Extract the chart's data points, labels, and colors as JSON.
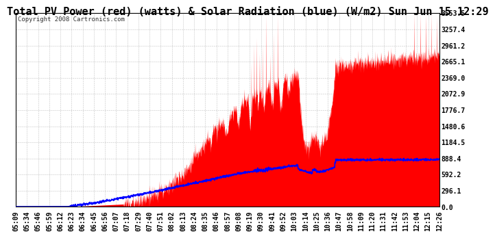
{
  "title": "Total PV Power (red) (watts) & Solar Radiation (blue) (W/m2) Sun Jun 15 12:29",
  "copyright": "Copyright 2008 Cartronics.com",
  "background_color": "#ffffff",
  "plot_bg_color": "#ffffff",
  "grid_color": "#aaaaaa",
  "y_ticks": [
    0.0,
    296.1,
    592.2,
    888.4,
    1184.5,
    1480.6,
    1776.7,
    2072.9,
    2369.0,
    2665.1,
    2961.2,
    3257.4,
    3553.5
  ],
  "y_max": 3553.5,
  "x_labels": [
    "05:09",
    "05:34",
    "05:46",
    "05:59",
    "06:12",
    "06:23",
    "06:34",
    "06:45",
    "06:56",
    "07:07",
    "07:18",
    "07:29",
    "07:40",
    "07:51",
    "08:02",
    "08:13",
    "08:24",
    "08:35",
    "08:46",
    "08:57",
    "09:08",
    "09:19",
    "09:30",
    "09:41",
    "09:52",
    "10:03",
    "10:14",
    "10:25",
    "10:36",
    "10:47",
    "10:58",
    "11:09",
    "11:20",
    "11:31",
    "11:42",
    "11:53",
    "12:04",
    "12:15",
    "12:26"
  ],
  "pv_color": "#ff0000",
  "solar_color": "#0000ff",
  "title_fontsize": 11,
  "tick_fontsize": 7,
  "copyright_fontsize": 6.5
}
